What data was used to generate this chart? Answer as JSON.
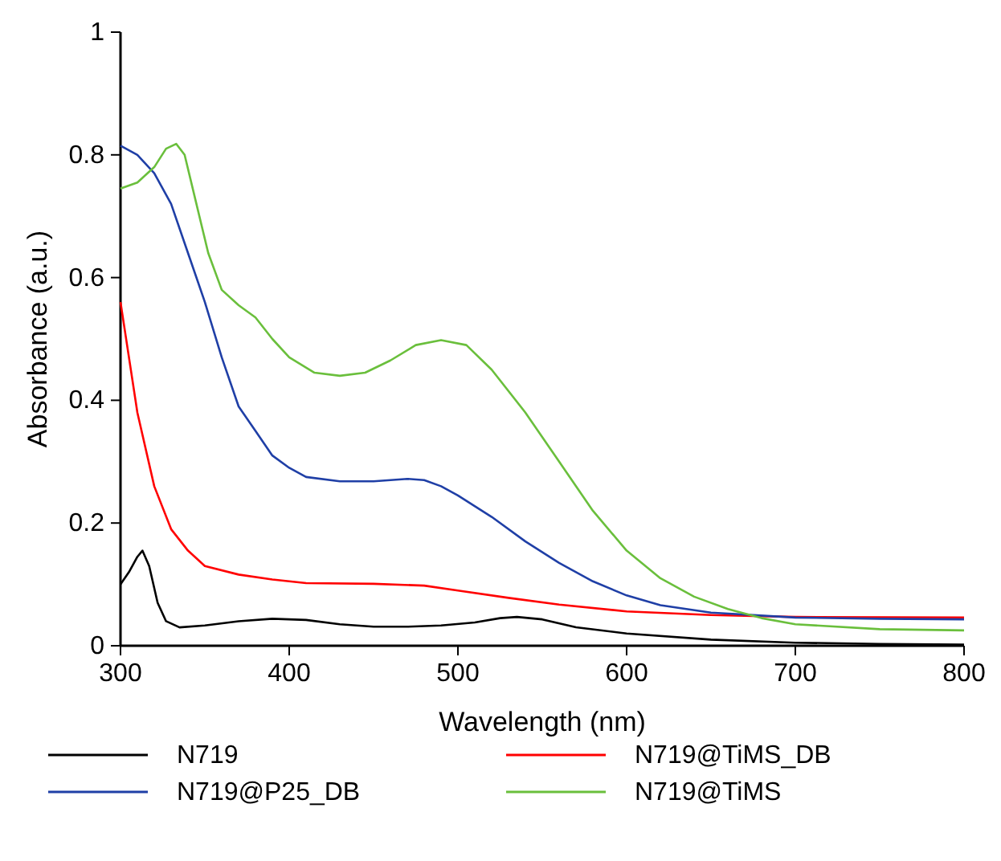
{
  "chart_data": {
    "type": "line",
    "xlabel": "Wavelength (nm)",
    "ylabel": "Absorbance (a.u.)",
    "xlim": [
      300,
      800
    ],
    "ylim": [
      0,
      1
    ],
    "xticks": [
      300,
      400,
      500,
      600,
      700,
      800
    ],
    "yticks": [
      0,
      0.2,
      0.4,
      0.6,
      0.8,
      1
    ],
    "grid": false,
    "legend": "bottom",
    "marker": "none",
    "line_style": "solid",
    "series": [
      {
        "name": "N719",
        "color": "#000000",
        "x": [
          300,
          305,
          310,
          313,
          317,
          322,
          327,
          335,
          350,
          370,
          390,
          410,
          430,
          450,
          470,
          490,
          510,
          525,
          535,
          550,
          570,
          600,
          650,
          700,
          750,
          800
        ],
        "values": [
          0.1,
          0.12,
          0.145,
          0.155,
          0.13,
          0.07,
          0.04,
          0.03,
          0.033,
          0.04,
          0.044,
          0.042,
          0.035,
          0.031,
          0.031,
          0.033,
          0.038,
          0.045,
          0.047,
          0.043,
          0.03,
          0.02,
          0.01,
          0.005,
          0.003,
          0.002
        ]
      },
      {
        "name": "N719@TiMS_DB",
        "color": "#ff0000",
        "x": [
          300,
          305,
          310,
          320,
          330,
          340,
          350,
          370,
          390,
          410,
          450,
          480,
          500,
          530,
          560,
          600,
          650,
          700,
          800
        ],
        "values": [
          0.56,
          0.47,
          0.38,
          0.26,
          0.19,
          0.155,
          0.13,
          0.116,
          0.108,
          0.102,
          0.101,
          0.098,
          0.09,
          0.078,
          0.067,
          0.056,
          0.05,
          0.047,
          0.046
        ]
      },
      {
        "name": "N719@P25_DB",
        "color": "#1f3fa6",
        "x": [
          300,
          310,
          320,
          330,
          340,
          350,
          360,
          370,
          380,
          390,
          400,
          410,
          430,
          450,
          470,
          480,
          490,
          500,
          520,
          540,
          560,
          580,
          600,
          620,
          650,
          700,
          750,
          800
        ],
        "values": [
          0.815,
          0.8,
          0.77,
          0.72,
          0.64,
          0.56,
          0.47,
          0.39,
          0.35,
          0.31,
          0.29,
          0.275,
          0.268,
          0.268,
          0.272,
          0.27,
          0.26,
          0.245,
          0.21,
          0.17,
          0.135,
          0.105,
          0.082,
          0.066,
          0.054,
          0.046,
          0.044,
          0.043
        ]
      },
      {
        "name": "N719@TiMS",
        "color": "#6abf3c",
        "x": [
          300,
          310,
          320,
          327,
          333,
          338,
          345,
          352,
          360,
          370,
          380,
          390,
          400,
          415,
          430,
          445,
          460,
          475,
          490,
          505,
          520,
          540,
          560,
          580,
          600,
          620,
          640,
          660,
          680,
          700,
          750,
          800
        ],
        "values": [
          0.745,
          0.755,
          0.78,
          0.81,
          0.818,
          0.8,
          0.72,
          0.64,
          0.58,
          0.555,
          0.535,
          0.5,
          0.47,
          0.445,
          0.44,
          0.445,
          0.465,
          0.49,
          0.498,
          0.49,
          0.45,
          0.38,
          0.3,
          0.22,
          0.155,
          0.11,
          0.08,
          0.06,
          0.045,
          0.035,
          0.027,
          0.025
        ]
      }
    ]
  }
}
